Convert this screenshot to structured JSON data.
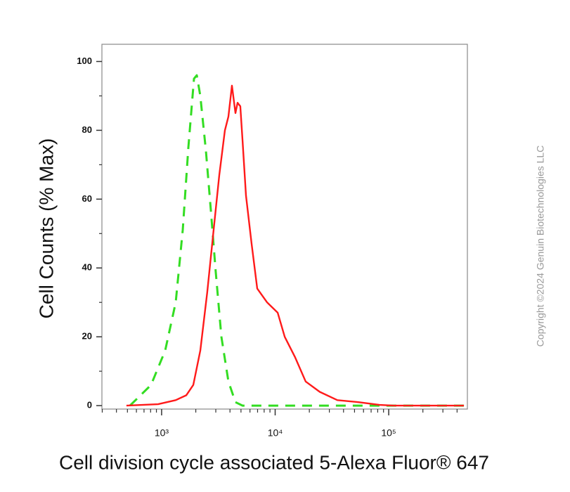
{
  "chart_data": {
    "type": "line",
    "xlabel": "Cell division cycle associated 5-Alexa Fluor® 647",
    "ylabel": "Cell Counts (% Max)",
    "watermark": "Copyright ©2024 Genuin Biotechnologies LLC",
    "xscale": "log",
    "xlim": [
      298,
      493000
    ],
    "ylim": [
      -1,
      105
    ],
    "xticks": [
      {
        "value": 1000,
        "label": "10³"
      },
      {
        "value": 10000,
        "label": "10⁴"
      },
      {
        "value": 100000,
        "label": "10⁵"
      }
    ],
    "xminorticks": [
      300,
      400,
      500,
      600,
      700,
      800,
      900,
      2000,
      3000,
      4000,
      5000,
      6000,
      7000,
      8000,
      9000,
      20000,
      30000,
      40000,
      50000,
      60000,
      70000,
      80000,
      90000,
      200000,
      300000,
      400000
    ],
    "yticks": [
      0,
      20,
      40,
      60,
      80,
      100
    ],
    "yminorticks": [
      10,
      30,
      50,
      70,
      90
    ],
    "series": [
      {
        "color": "#33dd22",
        "dash": true,
        "x": [
          526,
          807,
          1074,
          1330,
          1534,
          1719,
          1927,
          2040,
          2193,
          2456,
          2712,
          2996,
          3359,
          3874,
          4469,
          5158,
          460000
        ],
        "values": [
          0,
          6,
          16,
          30,
          51,
          75,
          95,
          96,
          90,
          74,
          57,
          39,
          20,
          7,
          1,
          0,
          0
        ]
      },
      {
        "color": "#ff1a1a",
        "dash": false,
        "x": [
          490,
          930,
          1330,
          1648,
          1900,
          2193,
          2524,
          2830,
          3218,
          3609,
          3874,
          4161,
          4469,
          4666,
          4934,
          5158,
          5536,
          6204,
          6957,
          8487,
          10520,
          12130,
          15010,
          18570,
          24700,
          35300,
          54200,
          83100,
          110500,
          460000
        ],
        "values": [
          0,
          0.4,
          1.6,
          3,
          6,
          16,
          33,
          49,
          67,
          80,
          84,
          93,
          85,
          88,
          87,
          77,
          61,
          47,
          34,
          30,
          27,
          20,
          14,
          7,
          4,
          1.6,
          1,
          0.2,
          0,
          0
        ]
      }
    ]
  }
}
